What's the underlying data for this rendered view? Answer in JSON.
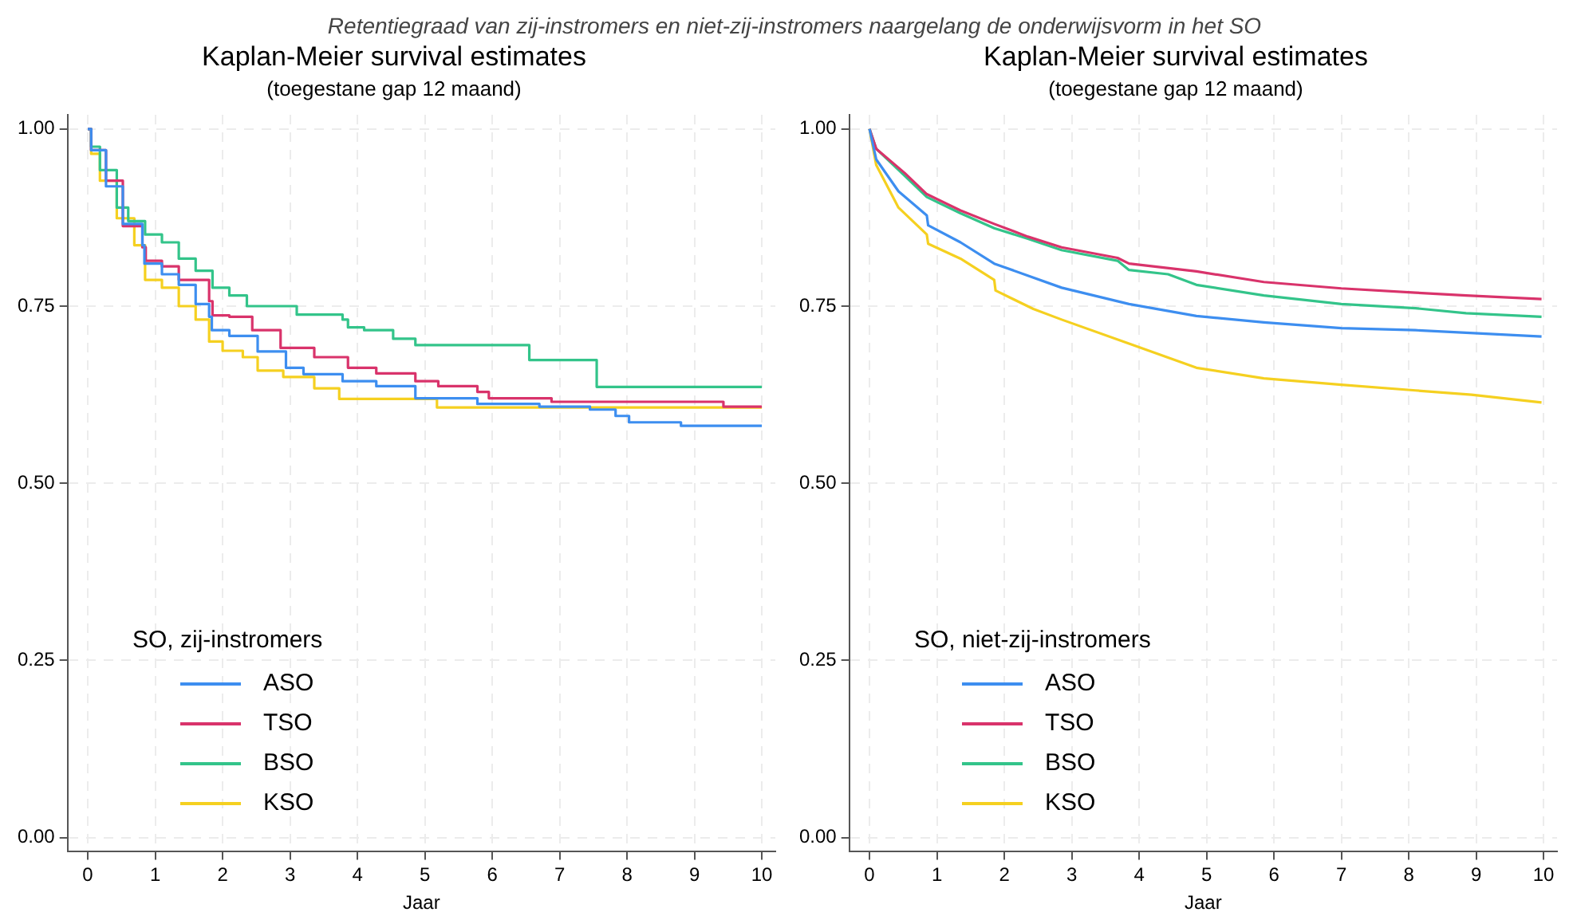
{
  "chart_data": [
    {
      "type": "step",
      "title": "Kaplan-Meier survival estimates",
      "subtitle": "(toegestane gap 12 maand)",
      "annotations": [
        "Retentiegraad van zij-instromers en niet-zij-instromers naargelang de onderwijsvorm in het SO"
      ],
      "xlabel": "Jaar",
      "legend_title": "SO, zij-instromers",
      "legend": "bottom left",
      "grid": true,
      "xlim": [
        -0.3,
        10.2
      ],
      "xticks": [
        0,
        1,
        2,
        3,
        4,
        5,
        6,
        7,
        8,
        9,
        10
      ],
      "ylim": [
        -0.02,
        1.02
      ],
      "yticks": [
        {
          "value": 0,
          "label": "0.00"
        },
        {
          "value": 0.25,
          "label": "0.25"
        },
        {
          "value": 0.5,
          "label": "0.50"
        },
        {
          "value": 0.75,
          "label": "0.75"
        },
        {
          "value": 1,
          "label": "1.00"
        }
      ],
      "series": [
        {
          "name": "ASO",
          "color": "#3d8ef0",
          "x": [
            0,
            0.05,
            0.27,
            0.52,
            0.81,
            0.84,
            1.1,
            1.35,
            1.6,
            1.8,
            1.84,
            2.1,
            2.52,
            2.94,
            3.2,
            3.78,
            4.28,
            4.86,
            5.78,
            6.7,
            7.45,
            7.83,
            8.03,
            8.8,
            10
          ],
          "values": [
            1,
            0.97,
            0.919,
            0.866,
            0.836,
            0.81,
            0.795,
            0.78,
            0.753,
            0.735,
            0.716,
            0.708,
            0.686,
            0.663,
            0.654,
            0.644,
            0.637,
            0.62,
            0.612,
            0.608,
            0.604,
            0.595,
            0.586,
            0.581,
            0.581
          ]
        },
        {
          "name": "TSO",
          "color": "#d9336b",
          "x": [
            0,
            0.05,
            0.27,
            0.52,
            0.81,
            0.86,
            1.1,
            1.35,
            1.8,
            1.85,
            2.1,
            2.44,
            2.86,
            3.36,
            3.86,
            4.28,
            4.86,
            5.2,
            5.78,
            5.95,
            6.88,
            9.43,
            10
          ],
          "values": [
            1,
            0.97,
            0.927,
            0.863,
            0.833,
            0.814,
            0.806,
            0.787,
            0.757,
            0.737,
            0.735,
            0.716,
            0.691,
            0.678,
            0.663,
            0.655,
            0.644,
            0.637,
            0.629,
            0.62,
            0.615,
            0.608,
            0.608
          ]
        },
        {
          "name": "BSO",
          "color": "#33c48a",
          "x": [
            0,
            0.05,
            0.18,
            0.43,
            0.6,
            0.85,
            1.1,
            1.35,
            1.6,
            1.85,
            2.1,
            2.36,
            3.1,
            3.78,
            3.86,
            4.1,
            4.53,
            4.86,
            6.55,
            7.55,
            10
          ],
          "values": [
            1,
            0.975,
            0.942,
            0.889,
            0.87,
            0.851,
            0.84,
            0.817,
            0.8,
            0.776,
            0.765,
            0.75,
            0.738,
            0.731,
            0.72,
            0.716,
            0.704,
            0.695,
            0.674,
            0.636,
            0.636
          ]
        },
        {
          "name": "KSO",
          "color": "#f5d020",
          "x": [
            0,
            0.05,
            0.18,
            0.43,
            0.69,
            0.85,
            1.1,
            1.35,
            1.6,
            1.8,
            2.0,
            2.3,
            2.52,
            2.9,
            3.36,
            3.73,
            5.18,
            10
          ],
          "values": [
            1,
            0.965,
            0.927,
            0.874,
            0.836,
            0.787,
            0.776,
            0.75,
            0.731,
            0.7,
            0.687,
            0.678,
            0.659,
            0.65,
            0.634,
            0.619,
            0.607,
            0.607
          ]
        }
      ]
    },
    {
      "type": "line",
      "title": "Kaplan-Meier survival estimates",
      "subtitle": "(toegestane gap 12 maand)",
      "xlabel": "Jaar",
      "legend_title": "SO, niet-zij-instromers",
      "legend": "bottom left",
      "grid": true,
      "xlim": [
        -0.3,
        10.2
      ],
      "xticks": [
        0,
        1,
        2,
        3,
        4,
        5,
        6,
        7,
        8,
        9,
        10
      ],
      "ylim": [
        -0.02,
        1.02
      ],
      "yticks": [
        {
          "value": 0,
          "label": "0.00"
        },
        {
          "value": 0.25,
          "label": "0.25"
        },
        {
          "value": 0.5,
          "label": "0.50"
        },
        {
          "value": 0.75,
          "label": "0.75"
        },
        {
          "value": 1,
          "label": "1.00"
        }
      ],
      "series": [
        {
          "name": "ASO",
          "color": "#3d8ef0",
          "x": [
            0,
            0.1,
            0.43,
            0.85,
            0.87,
            1.35,
            1.85,
            2.85,
            3.85,
            4.85,
            5.85,
            7.0,
            8.1,
            9.97
          ],
          "values": [
            1,
            0.957,
            0.912,
            0.878,
            0.864,
            0.84,
            0.81,
            0.776,
            0.753,
            0.736,
            0.727,
            0.719,
            0.716,
            0.707
          ]
        },
        {
          "name": "TSO",
          "color": "#d9336b",
          "x": [
            0,
            0.1,
            0.52,
            0.85,
            1.35,
            1.85,
            2.35,
            2.85,
            3.68,
            3.85,
            4.85,
            5.85,
            7.0,
            8.1,
            8.85,
            9.97
          ],
          "values": [
            1,
            0.972,
            0.938,
            0.908,
            0.885,
            0.866,
            0.848,
            0.833,
            0.818,
            0.81,
            0.799,
            0.784,
            0.775,
            0.769,
            0.765,
            0.76
          ]
        },
        {
          "name": "BSO",
          "color": "#33c48a",
          "x": [
            0,
            0.1,
            0.52,
            0.85,
            1.35,
            1.85,
            2.35,
            2.85,
            3.68,
            3.85,
            4.43,
            4.85,
            5.85,
            7.0,
            8.1,
            8.85,
            9.97
          ],
          "values": [
            1,
            0.972,
            0.934,
            0.904,
            0.881,
            0.86,
            0.845,
            0.829,
            0.814,
            0.801,
            0.795,
            0.78,
            0.765,
            0.753,
            0.747,
            0.74,
            0.735
          ]
        },
        {
          "name": "KSO",
          "color": "#f5d020",
          "x": [
            0,
            0.1,
            0.43,
            0.85,
            0.87,
            1.35,
            1.85,
            1.87,
            2.43,
            2.85,
            3.85,
            4.85,
            5.85,
            7.0,
            8.1,
            8.93,
            9.97
          ],
          "values": [
            1,
            0.949,
            0.889,
            0.851,
            0.838,
            0.817,
            0.787,
            0.772,
            0.746,
            0.731,
            0.697,
            0.663,
            0.648,
            0.639,
            0.631,
            0.625,
            0.614
          ]
        }
      ]
    }
  ]
}
